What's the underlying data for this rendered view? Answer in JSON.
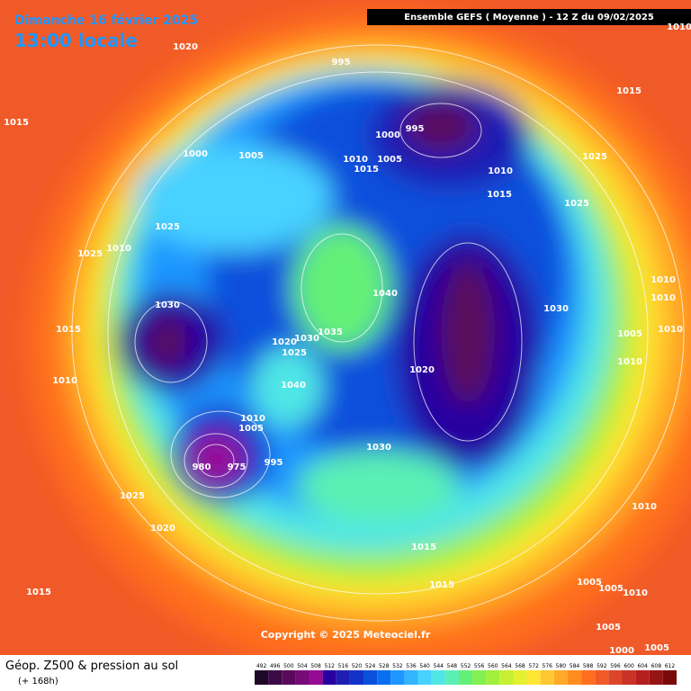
{
  "header": {
    "date": "Dimanche 16 février 2025",
    "time": "13:00 locale",
    "run": "Ensemble GEFS ( Moyenne )  -  12 Z du 09/02/2025"
  },
  "footer": {
    "title": "Géop. Z500 & pression au sol",
    "lead": "(+ 168h)",
    "copyright": "Copyright © 2025 Meteociel.fr"
  },
  "isobar_labels": [
    "1020",
    "1015",
    "995",
    "1015",
    "995",
    "1000",
    "1000",
    "1005",
    "1010",
    "1005",
    "1015",
    "1010",
    "1025",
    "1015",
    "1025",
    "1025",
    "1010",
    "1025",
    "1030",
    "1040",
    "1030",
    "1010",
    "1010",
    "1015",
    "1035",
    "1020",
    "1030",
    "1025",
    "1005",
    "1010",
    "1020",
    "1010",
    "1010",
    "1040",
    "1010",
    "1005",
    "980",
    "975",
    "995",
    "1030",
    "1025",
    "1020",
    "1010",
    "1015",
    "1015",
    "1015",
    "1005",
    "1005",
    "1010",
    "1005",
    "1000",
    "1005",
    "1010"
  ],
  "colorbar": {
    "ticks": [
      492,
      496,
      500,
      504,
      508,
      512,
      516,
      520,
      524,
      528,
      532,
      536,
      540,
      544,
      548,
      552,
      556,
      560,
      564,
      568,
      572,
      576,
      580,
      584,
      588,
      592,
      596,
      600,
      604,
      608,
      612
    ],
    "colors": [
      "#1e0a28",
      "#3c0a46",
      "#5a0a5a",
      "#780a78",
      "#960a96",
      "#2800a0",
      "#1e1eb4",
      "#1432c8",
      "#0a50dc",
      "#0a6ef0",
      "#1e96ff",
      "#32b4ff",
      "#46d2ff",
      "#50e6e6",
      "#5af0b4",
      "#64f078",
      "#82f050",
      "#a0f03c",
      "#c8f032",
      "#e6f032",
      "#ffe632",
      "#ffc832",
      "#ffaa28",
      "#ff8c1e",
      "#ff6e1e",
      "#f05a28",
      "#dc4628",
      "#c83228",
      "#b41e1e",
      "#961414",
      "#780a0a"
    ]
  }
}
